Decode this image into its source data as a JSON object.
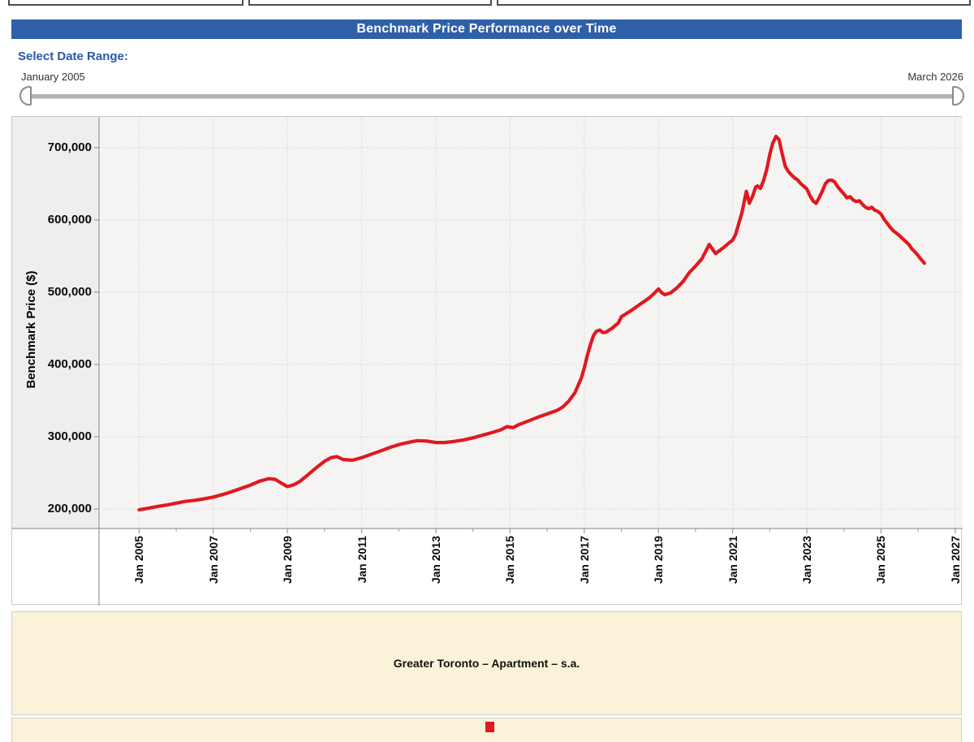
{
  "header": {
    "title": "Benchmark Price Performance over Time"
  },
  "date_range": {
    "label": "Select Date Range:",
    "start_label": "January 2005",
    "end_label": "March 2026"
  },
  "colors": {
    "header_blue": "#2e5fa9",
    "line_red": "#e0191f",
    "legend_cream": "#faf3da",
    "plot_background": "#f5f4f2",
    "grid_gray": "#cbcbc9",
    "axis_gray": "#999999"
  },
  "legend": {
    "series_title": "Greater Toronto – Apartment – s.a.",
    "marker_color": "#e0191f"
  },
  "chart_data": {
    "type": "line",
    "title": "Benchmark Price Performance over Time",
    "xlabel": "",
    "ylabel": "Benchmark Price ($)",
    "grid": "dotted",
    "legend_position": "bottom",
    "xlim": [
      2003.92,
      2027.2
    ],
    "ylim": [
      173000,
      742500
    ],
    "x_ticks": [
      {
        "year": 2005,
        "label": "Jan 2005"
      },
      {
        "year": 2007,
        "label": "Jan 2007"
      },
      {
        "year": 2009,
        "label": "Jan 2009"
      },
      {
        "year": 2011,
        "label": "Jan 2011"
      },
      {
        "year": 2013,
        "label": "Jan 2013"
      },
      {
        "year": 2015,
        "label": "Jan 2015"
      },
      {
        "year": 2017,
        "label": "Jan 2017"
      },
      {
        "year": 2019,
        "label": "Jan 2019"
      },
      {
        "year": 2021,
        "label": "Jan 2021"
      },
      {
        "year": 2023,
        "label": "Jan 2023"
      },
      {
        "year": 2025,
        "label": "Jan 2025"
      },
      {
        "year": 2027,
        "label": "Jan 2027"
      }
    ],
    "x_minor_tick_years": [
      2006,
      2008,
      2010,
      2012,
      2014,
      2016,
      2018,
      2020,
      2022,
      2024,
      2026
    ],
    "y_ticks": [
      {
        "value": 200000,
        "label": "200,000"
      },
      {
        "value": 300000,
        "label": "300,000"
      },
      {
        "value": 400000,
        "label": "400,000"
      },
      {
        "value": 500000,
        "label": "500,000"
      },
      {
        "value": 600000,
        "label": "600,000"
      },
      {
        "value": 700000,
        "label": "700,000"
      }
    ],
    "series": [
      {
        "name": "Greater Toronto – Apartment – s.a.",
        "color": "#e0191f",
        "points": [
          [
            2005.0,
            199000
          ],
          [
            2005.25,
            201000
          ],
          [
            2005.5,
            203500
          ],
          [
            2005.75,
            205500
          ],
          [
            2006.0,
            208000
          ],
          [
            2006.25,
            210500
          ],
          [
            2006.5,
            212000
          ],
          [
            2006.75,
            214000
          ],
          [
            2007.0,
            216500
          ],
          [
            2007.25,
            220000
          ],
          [
            2007.5,
            224000
          ],
          [
            2007.75,
            228500
          ],
          [
            2008.0,
            233000
          ],
          [
            2008.25,
            238500
          ],
          [
            2008.5,
            242000
          ],
          [
            2008.67,
            241000
          ],
          [
            2008.83,
            236000
          ],
          [
            2009.0,
            231000
          ],
          [
            2009.17,
            233500
          ],
          [
            2009.33,
            238000
          ],
          [
            2009.5,
            245000
          ],
          [
            2009.75,
            256000
          ],
          [
            2010.0,
            266000
          ],
          [
            2010.17,
            271000
          ],
          [
            2010.33,
            272500
          ],
          [
            2010.5,
            268500
          ],
          [
            2010.75,
            267500
          ],
          [
            2011.0,
            271000
          ],
          [
            2011.25,
            275500
          ],
          [
            2011.5,
            280000
          ],
          [
            2011.75,
            285000
          ],
          [
            2012.0,
            289000
          ],
          [
            2012.25,
            292000
          ],
          [
            2012.5,
            294500
          ],
          [
            2012.75,
            294000
          ],
          [
            2013.0,
            292000
          ],
          [
            2013.25,
            292000
          ],
          [
            2013.5,
            293500
          ],
          [
            2013.75,
            295500
          ],
          [
            2014.0,
            298500
          ],
          [
            2014.25,
            302000
          ],
          [
            2014.5,
            305500
          ],
          [
            2014.75,
            309500
          ],
          [
            2014.92,
            314000
          ],
          [
            2015.08,
            312500
          ],
          [
            2015.25,
            317000
          ],
          [
            2015.5,
            322000
          ],
          [
            2015.75,
            327000
          ],
          [
            2016.0,
            331500
          ],
          [
            2016.25,
            336000
          ],
          [
            2016.42,
            341000
          ],
          [
            2016.58,
            349000
          ],
          [
            2016.75,
            361000
          ],
          [
            2016.92,
            381000
          ],
          [
            2017.0,
            395000
          ],
          [
            2017.08,
            412000
          ],
          [
            2017.17,
            428000
          ],
          [
            2017.25,
            440000
          ],
          [
            2017.33,
            446000
          ],
          [
            2017.42,
            447500
          ],
          [
            2017.5,
            444000
          ],
          [
            2017.58,
            444500
          ],
          [
            2017.75,
            450000
          ],
          [
            2017.92,
            457500
          ],
          [
            2018.0,
            466000
          ],
          [
            2018.25,
            474000
          ],
          [
            2018.5,
            483000
          ],
          [
            2018.75,
            492000
          ],
          [
            2018.92,
            500000
          ],
          [
            2019.0,
            504500
          ],
          [
            2019.08,
            499500
          ],
          [
            2019.17,
            496500
          ],
          [
            2019.33,
            499000
          ],
          [
            2019.5,
            506000
          ],
          [
            2019.67,
            515000
          ],
          [
            2019.83,
            527000
          ],
          [
            2020.0,
            536000
          ],
          [
            2020.17,
            546000
          ],
          [
            2020.37,
            566000
          ],
          [
            2020.54,
            553500
          ],
          [
            2020.74,
            561000
          ],
          [
            2020.9,
            568000
          ],
          [
            2021.0,
            572000
          ],
          [
            2021.08,
            580000
          ],
          [
            2021.25,
            610000
          ],
          [
            2021.37,
            639500
          ],
          [
            2021.45,
            623000
          ],
          [
            2021.54,
            633000
          ],
          [
            2021.62,
            645500
          ],
          [
            2021.67,
            647000
          ],
          [
            2021.75,
            643500
          ],
          [
            2021.83,
            654000
          ],
          [
            2021.92,
            670000
          ],
          [
            2022.0,
            690000
          ],
          [
            2022.08,
            706000
          ],
          [
            2022.17,
            715500
          ],
          [
            2022.25,
            711000
          ],
          [
            2022.33,
            693000
          ],
          [
            2022.42,
            674000
          ],
          [
            2022.5,
            667000
          ],
          [
            2022.58,
            662500
          ],
          [
            2022.67,
            658000
          ],
          [
            2022.75,
            655500
          ],
          [
            2022.83,
            650500
          ],
          [
            2022.92,
            646500
          ],
          [
            2023.0,
            643000
          ],
          [
            2023.08,
            634000
          ],
          [
            2023.17,
            626000
          ],
          [
            2023.25,
            623000
          ],
          [
            2023.33,
            630500
          ],
          [
            2023.42,
            640000
          ],
          [
            2023.5,
            650000
          ],
          [
            2023.58,
            654500
          ],
          [
            2023.67,
            655000
          ],
          [
            2023.75,
            652500
          ],
          [
            2023.83,
            646000
          ],
          [
            2023.92,
            640500
          ],
          [
            2024.0,
            636000
          ],
          [
            2024.08,
            630500
          ],
          [
            2024.17,
            632000
          ],
          [
            2024.25,
            627500
          ],
          [
            2024.33,
            625500
          ],
          [
            2024.42,
            626500
          ],
          [
            2024.5,
            621500
          ],
          [
            2024.58,
            617500
          ],
          [
            2024.67,
            615500
          ],
          [
            2024.75,
            617500
          ],
          [
            2024.83,
            613500
          ],
          [
            2024.92,
            611500
          ],
          [
            2025.0,
            608000
          ],
          [
            2025.08,
            601000
          ],
          [
            2025.17,
            595000
          ],
          [
            2025.25,
            589500
          ],
          [
            2025.33,
            585000
          ],
          [
            2025.42,
            581500
          ],
          [
            2025.5,
            578000
          ],
          [
            2025.58,
            574000
          ],
          [
            2025.67,
            570000
          ],
          [
            2025.75,
            566000
          ],
          [
            2025.83,
            560000
          ],
          [
            2025.92,
            555500
          ],
          [
            2026.0,
            550500
          ],
          [
            2026.08,
            545500
          ],
          [
            2026.17,
            540000
          ]
        ]
      }
    ]
  }
}
